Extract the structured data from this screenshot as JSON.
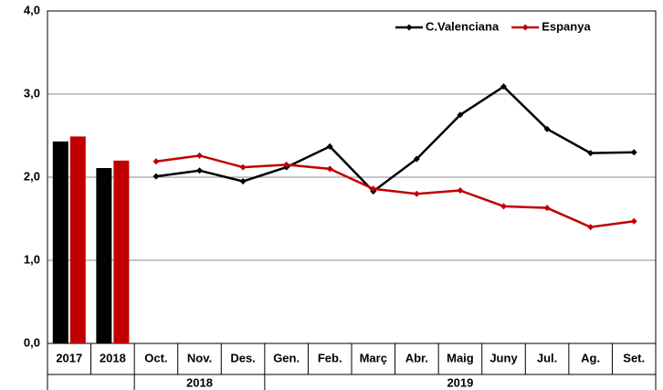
{
  "chart_data": {
    "type": "combo",
    "bar_categories": [
      "2017",
      "2018"
    ],
    "categories": [
      "Oct.",
      "Nov.",
      "Des.",
      "Gen.",
      "Feb.",
      "Març",
      "Abr.",
      "Maig",
      "Juny",
      "Jul.",
      "Ag.",
      "Set."
    ],
    "x_groups": [
      {
        "label": "2018",
        "from": "Oct.",
        "to": "Des."
      },
      {
        "label": "2019",
        "from": "Gen.",
        "to": "Set."
      }
    ],
    "series": [
      {
        "name": "C.Valenciana",
        "color": "#000000",
        "bar_values": [
          2.43,
          2.11
        ],
        "values": [
          2.01,
          2.08,
          1.95,
          2.12,
          2.37,
          1.83,
          2.22,
          2.75,
          3.09,
          2.58,
          2.29,
          2.3
        ]
      },
      {
        "name": "Espanya",
        "color": "#c00000",
        "bar_values": [
          2.49,
          2.2
        ],
        "values": [
          2.19,
          2.26,
          2.12,
          2.15,
          2.1,
          1.86,
          1.8,
          1.84,
          1.65,
          1.63,
          1.4,
          1.47
        ]
      }
    ],
    "ylim": [
      0,
      4
    ],
    "yticks": [
      {
        "value": 0,
        "label": "0,0"
      },
      {
        "value": 1,
        "label": "1,0"
      },
      {
        "value": 2,
        "label": "2,0"
      },
      {
        "value": 3,
        "label": "3,0"
      },
      {
        "value": 4,
        "label": "4,0"
      }
    ],
    "grid": true,
    "legend": "top-right"
  }
}
